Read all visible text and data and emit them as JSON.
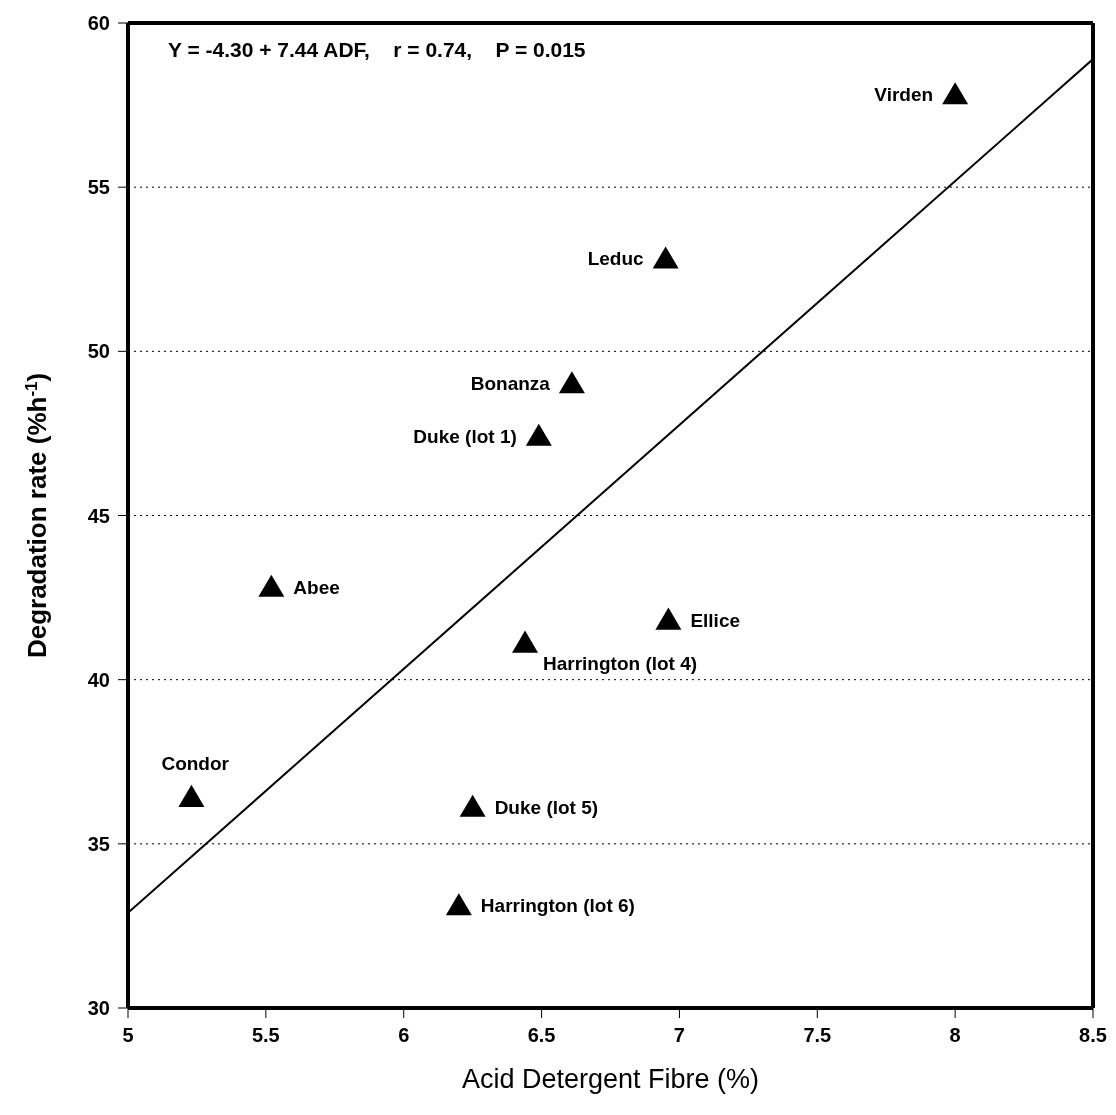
{
  "chart_data": {
    "type": "scatter",
    "xlabel": "Acid Detergent Fibre (%)",
    "ylabel": "Degradation rate (%h$^{-1}$)",
    "xlim": [
      5,
      8.5
    ],
    "xticks": [
      5,
      5.5,
      6,
      6.5,
      7,
      7.5,
      8,
      8.5
    ],
    "ylim": [
      30,
      60
    ],
    "yticks": [
      30,
      35,
      40,
      45,
      50,
      55,
      60
    ],
    "grid": "y",
    "legend": false,
    "series": [
      {
        "marker": "triangle",
        "color": "#000000",
        "x": [
          8.0,
          6.95,
          6.61,
          6.49,
          5.52,
          6.44,
          6.96,
          5.23,
          6.25,
          6.2
        ],
        "values": [
          57.8,
          52.8,
          49.0,
          47.4,
          42.8,
          41.1,
          41.8,
          36.4,
          36.1,
          33.1
        ]
      },
      {
        "type": "line",
        "color": "#000000",
        "x": [
          5,
          8.5
        ],
        "values": [
          32.9,
          58.9
        ]
      }
    ],
    "annotations": [
      "Y = -4.30 + 7.44 ADF,    r = 0.74,    P = 0.015",
      {
        "text": "Virden",
        "x": 8.0,
        "y": 57.8
      },
      {
        "text": "Leduc",
        "x": 6.95,
        "y": 52.8
      },
      {
        "text": "Bonanza",
        "x": 6.61,
        "y": 49.0
      },
      {
        "text": "Duke (lot 1)",
        "x": 6.49,
        "y": 47.4
      },
      {
        "text": "Abee",
        "x": 5.52,
        "y": 42.8
      },
      {
        "text": "Harrington (lot 4)",
        "x": 6.44,
        "y": 41.1
      },
      {
        "text": "Ellice",
        "x": 6.96,
        "y": 41.8
      },
      {
        "text": "Condor",
        "x": 5.23,
        "y": 36.4
      },
      {
        "text": "Duke (lot 5)",
        "x": 6.25,
        "y": 36.1
      },
      {
        "text": "Harrington (lot 6)",
        "x": 6.2,
        "y": 33.1
      }
    ]
  }
}
